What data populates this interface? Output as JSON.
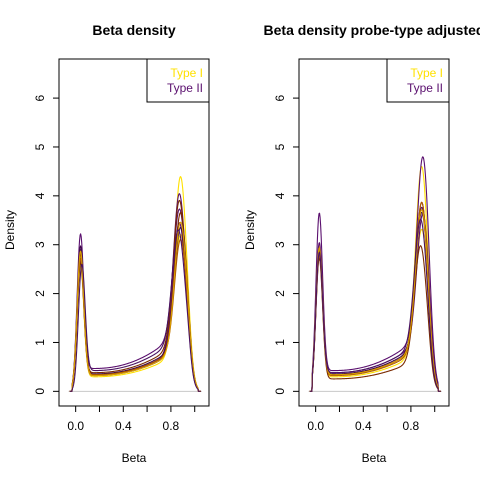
{
  "chart_data": [
    {
      "type": "line",
      "title": "Beta density",
      "xlabel": "Beta",
      "ylabel": "Density",
      "xlim": [
        -0.14,
        1.12
      ],
      "ylim": [
        -0.3,
        6.8
      ],
      "xticks": [
        0.0,
        0.2,
        0.4,
        0.6,
        0.8,
        1.0
      ],
      "xtick_labels": [
        "0.0",
        "",
        "0.4",
        "",
        "0.8",
        ""
      ],
      "yticks": [
        0,
        1,
        2,
        3,
        4,
        5,
        6
      ],
      "ytick_labels": [
        "0",
        "1",
        "2",
        "3",
        "4",
        "5",
        "6"
      ],
      "legend": {
        "position": "top-right",
        "entries": [
          {
            "label": "Type I",
            "color": "#FFE100"
          },
          {
            "label": "Type II",
            "color": "#5A0F6E"
          }
        ]
      },
      "grid": false,
      "baseline": 0,
      "series": [
        {
          "color": "#FFE100",
          "low_peak": [
            0.04,
            2.5
          ],
          "high_peak": [
            0.88,
            3.6
          ],
          "valley": 0.35
        },
        {
          "color": "#FFE100",
          "low_peak": [
            0.04,
            2.7
          ],
          "high_peak": [
            0.88,
            2.3
          ],
          "valley": 0.4
        },
        {
          "color": "#5A0F6E",
          "low_peak": [
            0.04,
            3.15
          ],
          "high_peak": [
            0.87,
            3.15
          ],
          "valley": 0.4
        },
        {
          "color": "#5A0F6E",
          "low_peak": [
            0.04,
            2.8
          ],
          "high_peak": [
            0.87,
            2.5
          ],
          "valley": 0.55
        },
        {
          "color": "#5A0F6E",
          "low_peak": [
            0.04,
            2.6
          ],
          "high_peak": [
            0.87,
            2.6
          ],
          "valley": 0.38
        },
        {
          "color": "#3E0A4A",
          "low_peak": [
            0.04,
            2.9
          ],
          "high_peak": [
            0.88,
            2.4
          ],
          "valley": 0.42
        },
        {
          "color": "#7A2A00",
          "low_peak": [
            0.04,
            2.75
          ],
          "high_peak": [
            0.88,
            2.75
          ],
          "valley": 0.4
        },
        {
          "color": "#7A2A00",
          "low_peak": [
            0.04,
            2.55
          ],
          "high_peak": [
            0.87,
            2.9
          ],
          "valley": 0.45
        },
        {
          "color": "#B05A00",
          "low_peak": [
            0.04,
            2.65
          ],
          "high_peak": [
            0.88,
            2.2
          ],
          "valley": 0.4
        },
        {
          "color": "#D9A000",
          "low_peak": [
            0.04,
            2.8
          ],
          "high_peak": [
            0.88,
            2.6
          ],
          "valley": 0.38
        },
        {
          "color": "#4A1260",
          "low_peak": [
            0.05,
            2.45
          ],
          "high_peak": [
            0.86,
            2.2
          ],
          "valley": 0.5
        }
      ]
    },
    {
      "type": "line",
      "title": "Beta density probe-type adjusted",
      "xlabel": "Beta",
      "ylabel": "Density",
      "xlim": [
        -0.14,
        1.12
      ],
      "ylim": [
        -0.3,
        6.8
      ],
      "xticks": [
        0.0,
        0.2,
        0.4,
        0.6,
        0.8,
        1.0
      ],
      "xtick_labels": [
        "0.0",
        "",
        "0.4",
        "",
        "0.8",
        ""
      ],
      "yticks": [
        0,
        1,
        2,
        3,
        4,
        5,
        6
      ],
      "ytick_labels": [
        "0",
        "1",
        "2",
        "3",
        "4",
        "5",
        "6"
      ],
      "legend": {
        "position": "top-right",
        "entries": [
          {
            "label": "Type I",
            "color": "#FFE100"
          },
          {
            "label": "Type II",
            "color": "#5A0F6E"
          }
        ]
      },
      "grid": false,
      "baseline": 0,
      "series": [
        {
          "color": "#FFE100",
          "low_peak": [
            0.03,
            2.95
          ],
          "high_peak": [
            0.89,
            3.8
          ],
          "valley": 0.35
        },
        {
          "color": "#FFE100",
          "low_peak": [
            0.03,
            2.8
          ],
          "high_peak": [
            0.89,
            2.4
          ],
          "valley": 0.4
        },
        {
          "color": "#5A0F6E",
          "low_peak": [
            0.03,
            3.6
          ],
          "high_peak": [
            0.9,
            3.65
          ],
          "valley": 0.5
        },
        {
          "color": "#5A0F6E",
          "low_peak": [
            0.03,
            3.0
          ],
          "high_peak": [
            0.9,
            2.6
          ],
          "valley": 0.45
        },
        {
          "color": "#5A0F6E",
          "low_peak": [
            0.03,
            2.9
          ],
          "high_peak": [
            0.89,
            2.85
          ],
          "valley": 0.4
        },
        {
          "color": "#3E0A4A",
          "low_peak": [
            0.03,
            2.85
          ],
          "high_peak": [
            0.89,
            2.7
          ],
          "valley": 0.42
        },
        {
          "color": "#7A2A00",
          "low_peak": [
            0.03,
            2.85
          ],
          "high_peak": [
            0.89,
            2.95
          ],
          "valley": 0.4
        },
        {
          "color": "#7A2A00",
          "low_peak": [
            0.03,
            2.7
          ],
          "high_peak": [
            0.88,
            2.3
          ],
          "valley": 0.3
        },
        {
          "color": "#B05A00",
          "low_peak": [
            0.03,
            2.75
          ],
          "high_peak": [
            0.89,
            3.0
          ],
          "valley": 0.38
        },
        {
          "color": "#D9A000",
          "low_peak": [
            0.03,
            2.9
          ],
          "high_peak": [
            0.89,
            2.8
          ],
          "valley": 0.4
        },
        {
          "color": "#4A1260",
          "low_peak": [
            0.03,
            2.8
          ],
          "high_peak": [
            0.88,
            2.5
          ],
          "valley": 0.45
        }
      ]
    }
  ]
}
